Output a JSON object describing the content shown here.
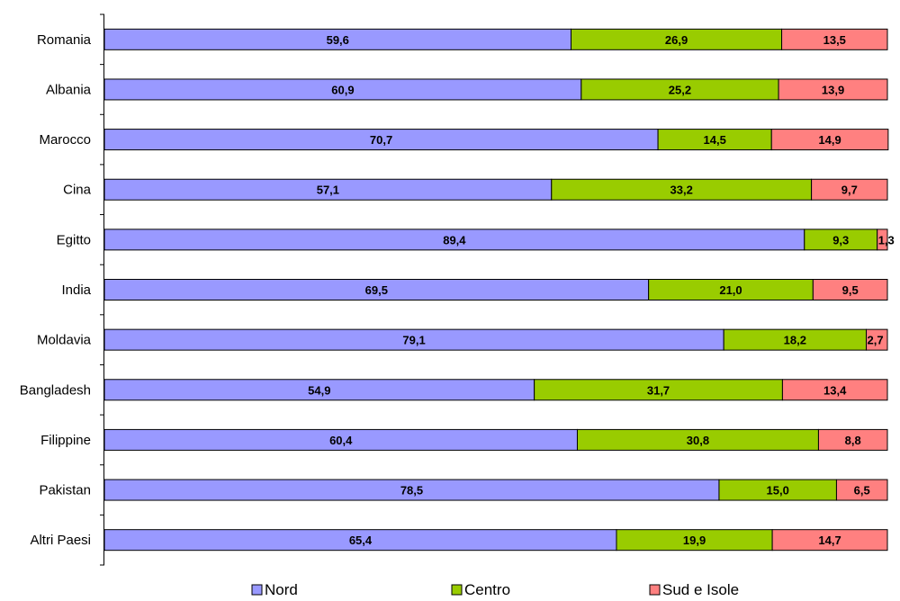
{
  "chart_data": {
    "type": "bar",
    "orientation": "horizontal",
    "stacked": true,
    "categories": [
      "Romania",
      "Albania",
      "Marocco",
      "Cina",
      "Egitto",
      "India",
      "Moldavia",
      "Bangladesh",
      "Filippine",
      "Pakistan",
      "Altri Paesi"
    ],
    "series": [
      {
        "name": "Nord",
        "color": "#9999ff",
        "values": [
          59.6,
          60.9,
          70.7,
          57.1,
          89.4,
          69.5,
          79.1,
          54.9,
          60.4,
          78.5,
          65.4
        ],
        "labels": [
          "59,6",
          "60,9",
          "70,7",
          "57,1",
          "89,4",
          "69,5",
          "79,1",
          "54,9",
          "60,4",
          "78,5",
          "65,4"
        ]
      },
      {
        "name": "Centro",
        "color": "#99cc00",
        "values": [
          26.9,
          25.2,
          14.5,
          33.2,
          9.3,
          21.0,
          18.2,
          31.7,
          30.8,
          15.0,
          19.9
        ],
        "labels": [
          "26,9",
          "25,2",
          "14,5",
          "33,2",
          "9,3",
          "21,0",
          "18,2",
          "31,7",
          "30,8",
          "15,0",
          "19,9"
        ]
      },
      {
        "name": "Sud e Isole",
        "color": "#ff8080",
        "values": [
          13.5,
          13.9,
          14.9,
          9.7,
          1.3,
          9.5,
          2.7,
          13.4,
          8.8,
          6.5,
          14.7
        ],
        "labels": [
          "13,5",
          "13,9",
          "14,9",
          "9,7",
          "1,3",
          "9,5",
          "2,7",
          "13,4",
          "8,8",
          "6,5",
          "14,7"
        ]
      }
    ],
    "xlim": [
      0,
      100
    ],
    "grid": false,
    "legend_position": "bottom"
  }
}
